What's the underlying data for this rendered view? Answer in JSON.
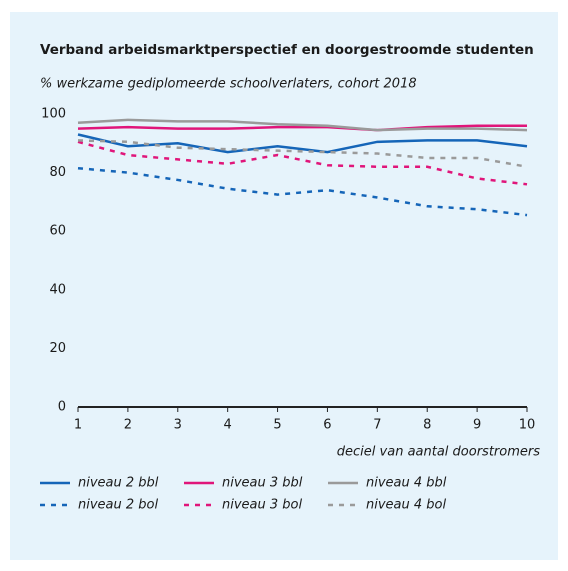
{
  "chart_data": {
    "type": "line",
    "title": "Verband arbeidsmarktperspectief en doorgestroomde studenten",
    "subtitle": "% werkzame gediplomeerde schoolverlaters, cohort 2018",
    "x_label": "deciel van aantal doorstromers",
    "x": [
      1,
      2,
      3,
      4,
      5,
      6,
      7,
      8,
      9,
      10
    ],
    "xlim": [
      1,
      10
    ],
    "xticks": [
      1,
      2,
      3,
      4,
      5,
      6,
      7,
      8,
      9,
      10
    ],
    "ylim": [
      0,
      100
    ],
    "yticks": [
      0,
      20,
      40,
      60,
      80,
      100
    ],
    "grid": false,
    "series": [
      {
        "name": "niveau 2 bbl",
        "color": "#1565b8",
        "dashed": false,
        "values": [
          93,
          89,
          90,
          87,
          89,
          87,
          90.5,
          91,
          91,
          89
        ]
      },
      {
        "name": "niveau 3 bbl",
        "color": "#e0157a",
        "dashed": false,
        "values": [
          95,
          95.5,
          95,
          95,
          95.5,
          95.5,
          94.5,
          95.5,
          96,
          96
        ]
      },
      {
        "name": "niveau 4 bbl",
        "color": "#9a9a9a",
        "dashed": false,
        "values": [
          97,
          98,
          97.5,
          97.5,
          96.5,
          96,
          94.5,
          95,
          95,
          94.5
        ]
      },
      {
        "name": "niveau 2 bol",
        "color": "#1565b8",
        "dashed": true,
        "values": [
          81.5,
          80,
          77.5,
          74.5,
          72.5,
          74,
          71.5,
          68.5,
          67.5,
          65.5
        ]
      },
      {
        "name": "niveau 3 bol",
        "color": "#e0157a",
        "dashed": true,
        "values": [
          90.5,
          86,
          84.5,
          83,
          86,
          82.5,
          82,
          82,
          78,
          76
        ]
      },
      {
        "name": "niveau 4 bol",
        "color": "#9a9a9a",
        "dashed": true,
        "values": [
          91,
          90.5,
          88.5,
          88,
          87.5,
          87,
          86.5,
          85,
          85,
          82
        ]
      }
    ]
  }
}
